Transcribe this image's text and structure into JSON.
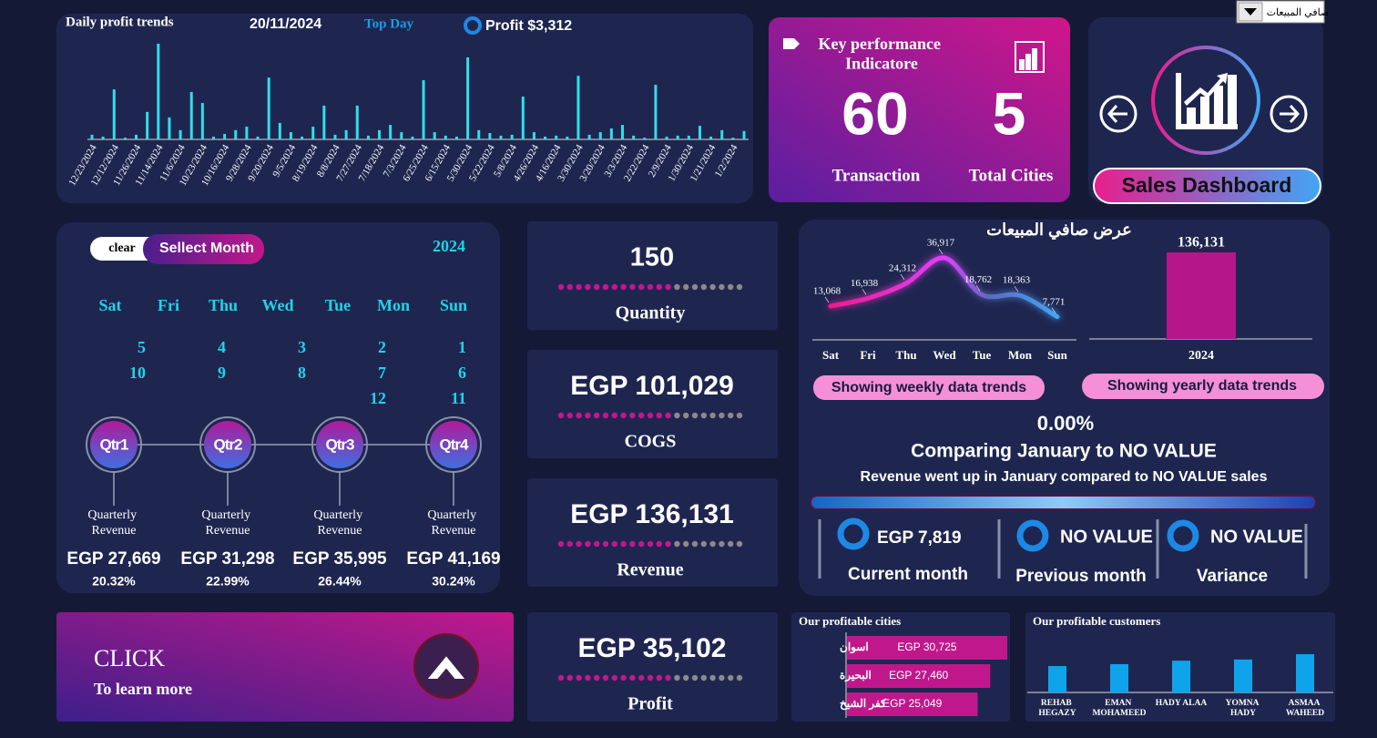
{
  "dropdown": "صافي المبيعات",
  "daily_profit": {
    "title": "Daily profit trends",
    "date": "20/11/2024",
    "top_day_label": "Top Day",
    "top_profit": "Profit $3,312",
    "chart": {
      "type": "bar",
      "color": "#2de0e8",
      "categories": [
        "12/23/2024",
        null,
        "12/12/2024",
        null,
        "11/26/2024",
        null,
        "11/14/2024",
        null,
        "11/6/2024",
        null,
        "10/23/2024",
        null,
        "10/16/2024",
        null,
        "9/28/2024",
        null,
        "9/20/2024",
        null,
        "9/5/2024",
        null,
        "8/19/2024",
        null,
        "8/8/2024",
        null,
        "7/27/2024",
        null,
        "7/18/2024",
        null,
        "7/3/2024",
        null,
        "6/25/2024",
        null,
        "6/15/2024",
        null,
        "5/30/2024",
        null,
        "5/22/2024",
        null,
        "5/8/2024",
        null,
        "4/26/2024",
        null,
        "4/16/2024",
        null,
        "3/30/2024",
        null,
        "3/20/2024",
        null,
        "3/3/2024",
        null,
        "2/22/2024",
        null,
        "2/9/2024",
        null,
        "1/30/2024",
        null,
        "1/21/2024",
        null,
        "1/2/2024",
        null
      ],
      "values": [
        160,
        95,
        1730,
        60,
        160,
        950,
        3312,
        760,
        320,
        1640,
        1260,
        95,
        190,
        320,
        440,
        95,
        2140,
        570,
        250,
        95,
        440,
        1170,
        160,
        320,
        1170,
        130,
        320,
        500,
        250,
        95,
        2050,
        250,
        130,
        95,
        2840,
        320,
        220,
        130,
        160,
        1480,
        250,
        95,
        130,
        95,
        2200,
        160,
        250,
        380,
        500,
        130,
        60,
        1890,
        95,
        130,
        130,
        470,
        95,
        320,
        60,
        290
      ]
    }
  },
  "kpi": {
    "title": "Key performance Indicatore",
    "transactions": "60",
    "transactions_label": "Transaction",
    "cities": "5",
    "cities_label": "Total Cities"
  },
  "sales_button": "Sales Dashboard",
  "calendar": {
    "clear": "clear",
    "select_month": "Sellect Month",
    "year": "2024",
    "days": [
      "Sat",
      "Fri",
      "Thu",
      "Wed",
      "Tue",
      "Mon",
      "Sun"
    ],
    "dates": [
      [
        5,
        4,
        3,
        2,
        1
      ],
      [
        10,
        9,
        8,
        7,
        6
      ],
      [
        12,
        11
      ]
    ],
    "caption": "Quarterly Revenue",
    "quarters": [
      {
        "name": "Qtr1",
        "revenue": "EGP 27,669",
        "share": "20.32%"
      },
      {
        "name": "Qtr2",
        "revenue": "EGP 31,298",
        "share": "22.99%"
      },
      {
        "name": "Qtr3",
        "revenue": "EGP 35,995",
        "share": "26.44%"
      },
      {
        "name": "Qtr4",
        "revenue": "EGP 41,169",
        "share": "30.24%"
      }
    ]
  },
  "cards": [
    {
      "value": "150",
      "label": "Quantity"
    },
    {
      "value": "EGP 101,029",
      "label": "COGS"
    },
    {
      "value": "EGP 136,131",
      "label": "Revenue"
    },
    {
      "value": "EGP 35,102",
      "label": "Profit"
    }
  ],
  "trends": {
    "title": "عرض  صافي المبيعات",
    "weekly": {
      "type": "line",
      "categories": [
        "Sat",
        "Fri",
        "Thu",
        "Wed",
        "Tue",
        "Mon",
        "Sun"
      ],
      "values": [
        13068,
        16938,
        24312,
        36917,
        18762,
        18363,
        7771
      ],
      "value_labels": [
        "13,068",
        "16,938",
        "24,312",
        "36,917",
        "18,762",
        "18,363",
        "7,771"
      ]
    },
    "yearly": {
      "type": "bar",
      "color": "#b5178a",
      "categories": [
        "2024"
      ],
      "values": [
        136131
      ],
      "value_labels": [
        "136,131"
      ]
    },
    "weekly_button": "Showing weekly data trends",
    "yearly_button": "Showing yearly data trends",
    "change": "0.00%",
    "comparison": "Comparing January to NO VALUE",
    "comparison_note": "Revenue went up in January compared to NO VALUE sales",
    "items": [
      {
        "value": "EGP 7,819",
        "label": "Current month"
      },
      {
        "value": "NO VALUE",
        "label": "Previous month"
      },
      {
        "value": "NO VALUE",
        "label": "Variance"
      }
    ]
  },
  "click_card": {
    "title": "CLICK",
    "subtitle": "To learn more"
  },
  "cities": {
    "type": "bar",
    "title": "Our profitable cities",
    "color": "#c0188c",
    "categories": [
      "اسوان",
      "البحيرة",
      "كفر الشيخ"
    ],
    "values": [
      30725,
      27460,
      25049
    ],
    "value_labels": [
      "EGP 30,725",
      "EGP 27,460",
      "EGP 25,049"
    ]
  },
  "customers": {
    "type": "bar",
    "title": "Our profitable customers",
    "color": "#0fa3ec",
    "categories": [
      "REHAB HEGAZY",
      "EMAN MOHAMEED",
      "HADY ALAA",
      "YOMNA HADY",
      "ASMAA WAHEED"
    ],
    "values": [
      6900,
      7400,
      8300,
      8600,
      10000
    ]
  }
}
